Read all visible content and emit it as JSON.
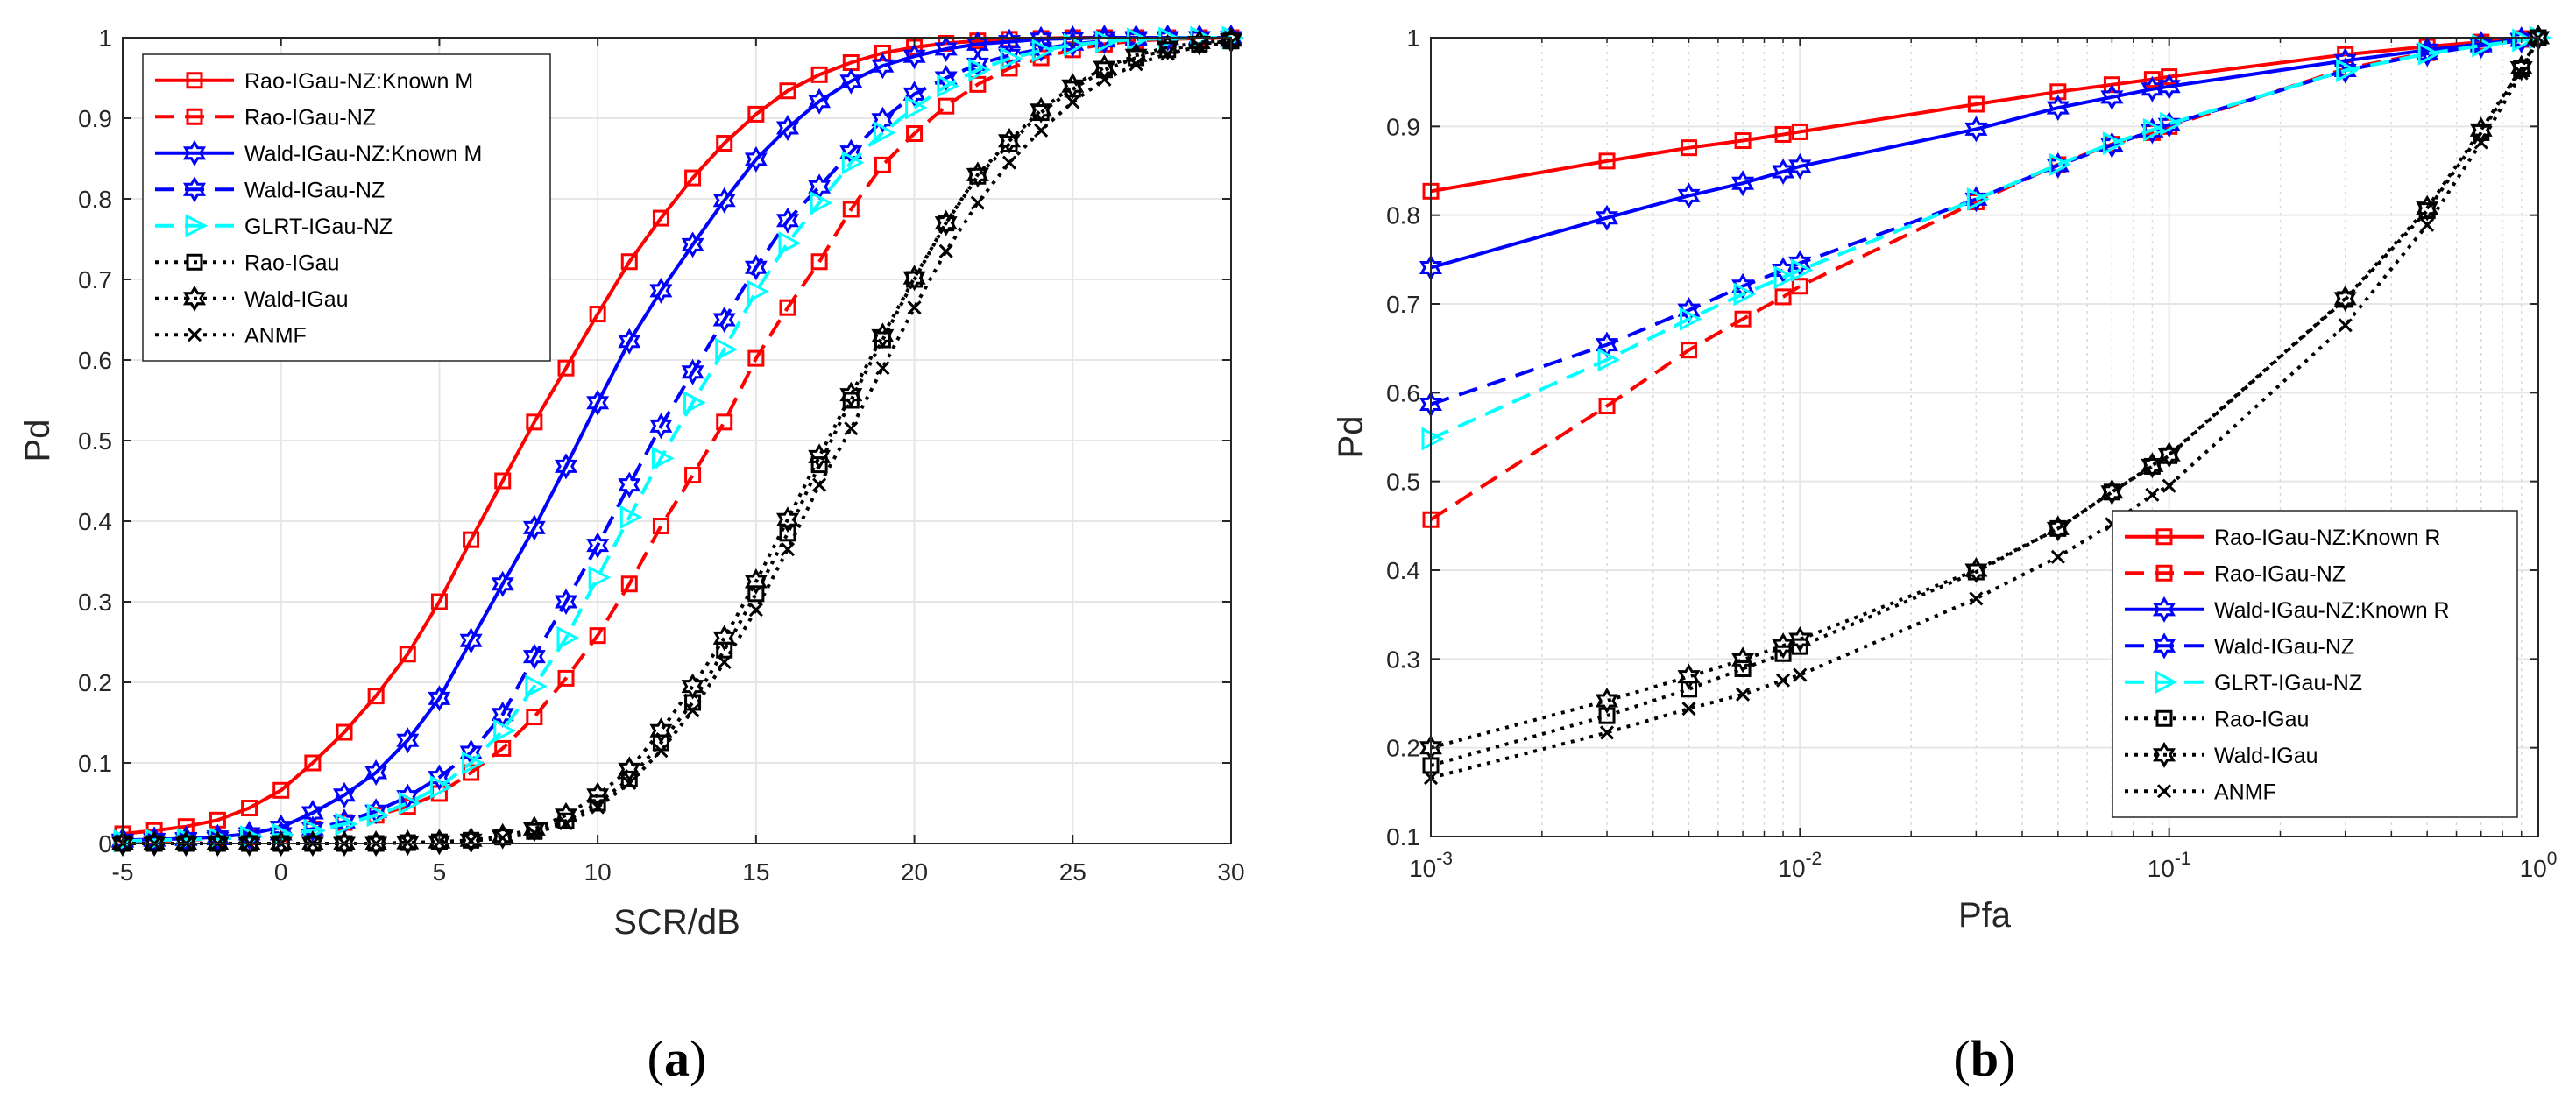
{
  "chart_data": [
    {
      "type": "line",
      "panel_label": {
        "open": "(",
        "letter": "a",
        "close": ")"
      },
      "xlabel": "SCR/dB",
      "ylabel": "Pd",
      "xscale": "linear",
      "xlim": [
        -5,
        30
      ],
      "ylim": [
        0,
        1
      ],
      "xticks": [
        -5,
        0,
        5,
        10,
        15,
        20,
        25,
        30
      ],
      "xtick_labels": [
        "-5",
        "0",
        "5",
        "10",
        "15",
        "20",
        "25",
        "30"
      ],
      "yticks": [
        0,
        0.1,
        0.2,
        0.3,
        0.4,
        0.5,
        0.6,
        0.7,
        0.8,
        0.9,
        1
      ],
      "ytick_labels": [
        "0",
        "0.1",
        "0.2",
        "0.3",
        "0.4",
        "0.5",
        "0.6",
        "0.7",
        "0.8",
        "0.9",
        "1"
      ],
      "grid": true,
      "legend_position": "top-left",
      "x": [
        -5,
        -4,
        -3,
        -2,
        -1,
        0,
        1,
        2,
        3,
        4,
        5,
        6,
        7,
        8,
        9,
        10,
        11,
        12,
        13,
        14,
        15,
        16,
        17,
        18,
        19,
        20,
        21,
        22,
        23,
        24,
        25,
        26,
        27,
        28,
        29,
        30
      ],
      "series": [
        {
          "name": "Rao-IGau-NZ:Known M",
          "color": "#ff0000",
          "dash": "solid",
          "marker": "square",
          "values": [
            0.012,
            0.016,
            0.021,
            0.029,
            0.044,
            0.066,
            0.1,
            0.138,
            0.183,
            0.235,
            0.3,
            0.377,
            0.45,
            0.523,
            0.59,
            0.657,
            0.722,
            0.776,
            0.826,
            0.869,
            0.905,
            0.934,
            0.954,
            0.969,
            0.981,
            0.988,
            0.993,
            0.996,
            0.998,
            0.999,
            1.0,
            1.0,
            1.0,
            1.0,
            1.0,
            1.0
          ]
        },
        {
          "name": "Rao-IGau-NZ",
          "color": "#ff0000",
          "dash": "dashed",
          "marker": "square",
          "values": [
            0.002,
            0.003,
            0.004,
            0.006,
            0.008,
            0.012,
            0.018,
            0.026,
            0.035,
            0.046,
            0.062,
            0.088,
            0.118,
            0.157,
            0.205,
            0.258,
            0.322,
            0.394,
            0.457,
            0.523,
            0.602,
            0.665,
            0.722,
            0.787,
            0.842,
            0.881,
            0.915,
            0.942,
            0.962,
            0.975,
            0.985,
            0.992,
            0.996,
            0.998,
            0.999,
            1.0
          ]
        },
        {
          "name": "Wald-IGau-NZ:Known M",
          "color": "#0000ff",
          "dash": "solid",
          "marker": "hexagram",
          "values": [
            0.004,
            0.005,
            0.006,
            0.008,
            0.012,
            0.02,
            0.038,
            0.06,
            0.088,
            0.128,
            0.18,
            0.252,
            0.322,
            0.392,
            0.468,
            0.547,
            0.623,
            0.686,
            0.743,
            0.798,
            0.849,
            0.888,
            0.921,
            0.946,
            0.965,
            0.977,
            0.986,
            0.992,
            0.995,
            0.998,
            0.999,
            1.0,
            1.0,
            1.0,
            1.0,
            1.0
          ]
        },
        {
          "name": "Wald-IGau-NZ",
          "color": "#0000ff",
          "dash": "dashed",
          "marker": "hexagram",
          "values": [
            0.003,
            0.004,
            0.005,
            0.006,
            0.008,
            0.012,
            0.018,
            0.027,
            0.04,
            0.058,
            0.082,
            0.113,
            0.16,
            0.232,
            0.3,
            0.37,
            0.445,
            0.518,
            0.585,
            0.65,
            0.715,
            0.773,
            0.815,
            0.858,
            0.898,
            0.93,
            0.95,
            0.967,
            0.978,
            0.986,
            0.992,
            0.996,
            0.998,
            0.999,
            1.0,
            1.0
          ]
        },
        {
          "name": "GLRT-IGau-NZ",
          "color": "#00ffff",
          "dash": "dashed",
          "marker": "triangle-right",
          "values": [
            0.003,
            0.004,
            0.005,
            0.006,
            0.008,
            0.011,
            0.016,
            0.024,
            0.035,
            0.05,
            0.07,
            0.1,
            0.14,
            0.195,
            0.255,
            0.33,
            0.405,
            0.478,
            0.547,
            0.613,
            0.685,
            0.745,
            0.795,
            0.845,
            0.882,
            0.913,
            0.94,
            0.96,
            0.974,
            0.984,
            0.991,
            0.995,
            0.998,
            0.999,
            1.0,
            1.0
          ]
        },
        {
          "name": "Rao-IGau",
          "color": "#000000",
          "dash": "dotted",
          "marker": "square",
          "values": [
            0.0,
            0.0,
            0.0,
            0.0,
            0.0,
            0.0,
            0.0,
            0.0,
            0.0,
            0.001,
            0.002,
            0.004,
            0.008,
            0.015,
            0.028,
            0.05,
            0.08,
            0.125,
            0.175,
            0.24,
            0.31,
            0.385,
            0.47,
            0.55,
            0.625,
            0.7,
            0.77,
            0.828,
            0.868,
            0.907,
            0.936,
            0.96,
            0.975,
            0.985,
            0.992,
            0.996
          ]
        },
        {
          "name": "Wald-IGau",
          "color": "#000000",
          "dash": "dotted",
          "marker": "hexagram",
          "values": [
            0.0,
            0.0,
            0.0,
            0.0,
            0.0,
            0.0,
            0.0,
            0.0,
            0.0,
            0.001,
            0.002,
            0.004,
            0.009,
            0.018,
            0.035,
            0.06,
            0.092,
            0.14,
            0.195,
            0.255,
            0.325,
            0.402,
            0.48,
            0.557,
            0.63,
            0.702,
            0.77,
            0.83,
            0.872,
            0.91,
            0.94,
            0.963,
            0.978,
            0.988,
            0.994,
            0.997
          ]
        },
        {
          "name": "ANMF",
          "color": "#000000",
          "dash": "dotted",
          "marker": "x",
          "values": [
            0.0,
            0.0,
            0.0,
            0.0,
            0.0,
            0.0,
            0.0,
            0.0,
            0.0,
            0.001,
            0.002,
            0.003,
            0.007,
            0.013,
            0.025,
            0.045,
            0.075,
            0.115,
            0.165,
            0.225,
            0.29,
            0.365,
            0.445,
            0.515,
            0.59,
            0.665,
            0.735,
            0.795,
            0.845,
            0.885,
            0.92,
            0.948,
            0.967,
            0.98,
            0.989,
            0.994
          ]
        }
      ]
    },
    {
      "type": "line",
      "panel_label": {
        "open": "(",
        "letter": "b",
        "close": ")"
      },
      "xlabel": "Pfa",
      "ylabel": "Pd",
      "xscale": "log",
      "xlim": [
        0.001,
        1
      ],
      "ylim": [
        0.1,
        1
      ],
      "xticks": [
        0.001,
        0.01,
        0.1,
        1
      ],
      "xtick_labels": [
        {
          "base": "10",
          "exp": "-3"
        },
        {
          "base": "10",
          "exp": "-2"
        },
        {
          "base": "10",
          "exp": "-1"
        },
        {
          "base": "10",
          "exp": "0"
        }
      ],
      "yticks": [
        0.1,
        0.2,
        0.3,
        0.4,
        0.5,
        0.6,
        0.7,
        0.8,
        0.9,
        1
      ],
      "ytick_labels": [
        "0.1",
        "0.2",
        "0.3",
        "0.4",
        "0.5",
        "0.6",
        "0.7",
        "0.8",
        "0.9",
        "1"
      ],
      "grid": true,
      "legend_position": "bottom-right",
      "x": [
        0.001,
        0.003,
        0.005,
        0.007,
        0.009,
        0.01,
        0.03,
        0.05,
        0.07,
        0.09,
        0.1,
        0.3,
        0.5,
        0.7,
        0.9,
        1.0
      ],
      "series": [
        {
          "name": "Rao-IGau-NZ:Known R",
          "color": "#ff0000",
          "dash": "solid",
          "marker": "square",
          "values": [
            0.827,
            0.861,
            0.876,
            0.884,
            0.891,
            0.894,
            0.925,
            0.939,
            0.947,
            0.953,
            0.956,
            0.981,
            0.99,
            0.995,
            0.999,
            1.0
          ]
        },
        {
          "name": "Rao-IGau-NZ",
          "color": "#ff0000",
          "dash": "dashed",
          "marker": "square",
          "values": [
            0.457,
            0.585,
            0.648,
            0.683,
            0.708,
            0.72,
            0.815,
            0.857,
            0.88,
            0.893,
            0.9,
            0.965,
            0.983,
            0.992,
            0.998,
            1.0
          ]
        },
        {
          "name": "Wald-IGau-NZ:Known R",
          "color": "#0000ff",
          "dash": "solid",
          "marker": "hexagram",
          "values": [
            0.741,
            0.797,
            0.822,
            0.836,
            0.849,
            0.855,
            0.897,
            0.921,
            0.933,
            0.942,
            0.945,
            0.974,
            0.986,
            0.993,
            0.998,
            1.0
          ]
        },
        {
          "name": "Wald-IGau-NZ",
          "color": "#0000ff",
          "dash": "dashed",
          "marker": "hexagram",
          "values": [
            0.587,
            0.654,
            0.693,
            0.72,
            0.738,
            0.746,
            0.818,
            0.856,
            0.879,
            0.895,
            0.902,
            0.963,
            0.982,
            0.991,
            0.997,
            1.0
          ]
        },
        {
          "name": "GLRT-IGau-NZ",
          "color": "#00ffff",
          "dash": "dashed",
          "marker": "triangle-right",
          "values": [
            0.548,
            0.637,
            0.683,
            0.711,
            0.73,
            0.738,
            0.818,
            0.857,
            0.881,
            0.896,
            0.903,
            0.963,
            0.982,
            0.991,
            0.997,
            1.0
          ]
        },
        {
          "name": "Rao-IGau",
          "color": "#000000",
          "dash": "dotted",
          "marker": "square",
          "values": [
            0.18,
            0.236,
            0.266,
            0.289,
            0.306,
            0.314,
            0.398,
            0.447,
            0.488,
            0.517,
            0.529,
            0.705,
            0.805,
            0.893,
            0.965,
            1.0
          ]
        },
        {
          "name": "Wald-IGau",
          "color": "#000000",
          "dash": "dotted",
          "marker": "hexagram",
          "values": [
            0.2,
            0.253,
            0.28,
            0.299,
            0.315,
            0.322,
            0.4,
            0.447,
            0.488,
            0.518,
            0.53,
            0.706,
            0.808,
            0.896,
            0.966,
            1.0
          ]
        },
        {
          "name": "ANMF",
          "color": "#000000",
          "dash": "dotted",
          "marker": "x",
          "values": [
            0.166,
            0.217,
            0.244,
            0.26,
            0.276,
            0.282,
            0.368,
            0.415,
            0.452,
            0.485,
            0.495,
            0.676,
            0.789,
            0.882,
            0.96,
            1.0
          ]
        }
      ]
    }
  ]
}
